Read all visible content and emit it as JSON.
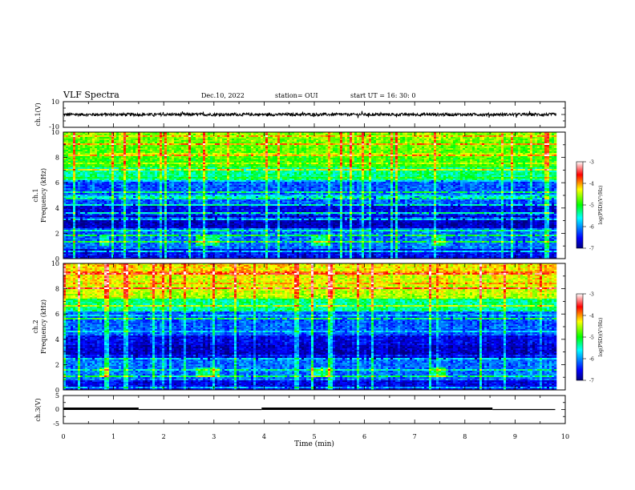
{
  "header": {
    "title": "VLF Spectra",
    "date": "Dec.10, 2022",
    "station": "station= OUI",
    "start": "start  UT =  16: 30: 0"
  },
  "chart_data": [
    {
      "type": "line",
      "ylabel": "ch.1(V)",
      "ylim": [
        -10,
        10
      ],
      "yticks": [
        "10",
        "-10"
      ],
      "description_level": "waveform centered near 0 V"
    },
    {
      "type": "heatmap",
      "ylabel_line1": "ch.1",
      "ylabel_line2": "Frequency (kHz)",
      "ylim": [
        0,
        10
      ],
      "yticks": [
        "0",
        "2",
        "4",
        "6",
        "8",
        "10"
      ],
      "colorbar": {
        "min_label": "-7",
        "max_label": "-3",
        "ticks": [
          "-7",
          "-6",
          "-5",
          "-4",
          "-3"
        ],
        "label": "log(PSD)(V²/Hz)"
      }
    },
    {
      "type": "heatmap",
      "ylabel_line1": "ch.2",
      "ylabel_line2": "Frequency (kHz)",
      "ylim": [
        0,
        10
      ],
      "yticks": [
        "0",
        "2",
        "4",
        "6",
        "8",
        "10"
      ],
      "colorbar": {
        "min_label": "-7",
        "max_label": "-3",
        "ticks": [
          "-7",
          "-6",
          "-5",
          "-4",
          "-3"
        ],
        "label": "log(PSD)(V²/Hz)"
      }
    },
    {
      "type": "line",
      "ylabel": "ch.3(V)",
      "ylim": [
        -5,
        5
      ],
      "yticks": [
        "5",
        "0",
        "-5"
      ],
      "segments": [
        {
          "x": [
            0,
            1.5
          ],
          "y": 0.3
        },
        {
          "x": [
            1.5,
            3.95
          ],
          "y": 0
        },
        {
          "x": [
            3.95,
            8.55
          ],
          "y": 0.3
        },
        {
          "x": [
            8.55,
            9.8
          ],
          "y": 0
        }
      ]
    }
  ],
  "xaxis": {
    "label": "Time (min)",
    "xlim": [
      0,
      10
    ],
    "ticks": [
      "0",
      "1",
      "2",
      "3",
      "4",
      "5",
      "6",
      "7",
      "8",
      "9",
      "10"
    ]
  },
  "colors": {
    "colormap": [
      "#000080",
      "#0000ff",
      "#00ffff",
      "#00ff00",
      "#ffff00",
      "#ff0000",
      "#ffffff"
    ]
  }
}
